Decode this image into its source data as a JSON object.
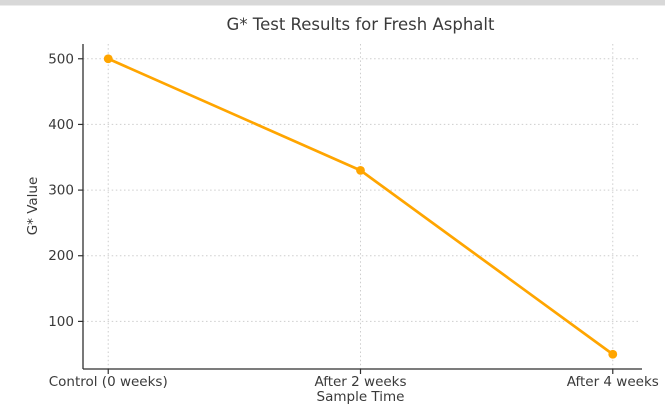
{
  "chrome": {
    "top_bar_color": "#d8d8d8"
  },
  "chart_data": {
    "type": "line",
    "title": "G* Test Results for Fresh Asphalt",
    "xlabel": "Sample Time",
    "ylabel": "G* Value",
    "categories": [
      "Control (0 weeks)",
      "After 2 weeks",
      "After 4 weeks"
    ],
    "values": [
      500,
      330,
      50
    ],
    "yticks": [
      100,
      200,
      300,
      400,
      500
    ],
    "ylim": [
      27.5,
      522.5
    ],
    "grid": true,
    "legend": "none",
    "line_color": "#FFA500",
    "grid_color": "#cdcdcd",
    "axis_color": "#2f2f2f",
    "text_color": "#3a3a3a"
  }
}
